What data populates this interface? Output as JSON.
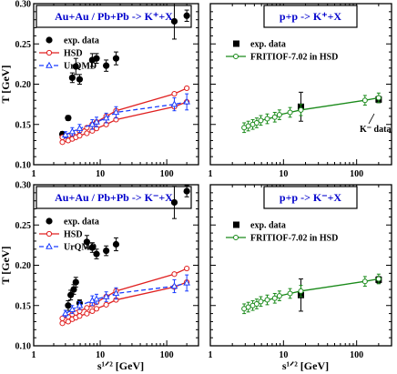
{
  "colors": {
    "exp": "#000000",
    "hsd": "#e02020",
    "urqmd": "#1a3cff",
    "fritiof": "#1a8a1a",
    "boxtext": "#0000cc"
  },
  "chart_data": [
    {
      "type": "scatter",
      "panel": "top-left",
      "boxtitle": "Au+Au / Pb+Pb  -> K⁺+X",
      "ylabel": "T [GeV]",
      "xlabel": "",
      "xscale": "log",
      "xlim": [
        1,
        300
      ],
      "ylim": [
        0.1,
        0.3
      ],
      "xticks": [
        "1",
        "10",
        "100"
      ],
      "yticks": [
        "0.10",
        "0.15",
        "0.20",
        "0.25",
        "0.30"
      ],
      "legend": [
        "exp. data",
        "HSD",
        "UrQMD"
      ],
      "series": [
        {
          "name": "exp. data",
          "kind": "points",
          "points": [
            [
              2.7,
              0.138
            ],
            [
              3.3,
              0.158
            ],
            [
              3.8,
              0.208
            ],
            [
              4.3,
              0.222
            ],
            [
              4.9,
              0.206
            ],
            [
              7.6,
              0.23
            ],
            [
              8.8,
              0.232
            ],
            [
              12.3,
              0.223
            ],
            [
              17.3,
              0.232
            ],
            [
              130,
              0.278
            ],
            [
              200,
              0.285
            ]
          ],
          "err": [
            0.003,
            0.003,
            0.006,
            0.01,
            0.006,
            0.008,
            0.006,
            0.007,
            0.008,
            0.022,
            0.007
          ]
        },
        {
          "name": "HSD",
          "kind": "band",
          "x": [
            2.7,
            3.3,
            3.8,
            4.3,
            4.9,
            6.3,
            7.6,
            8.8,
            12.3,
            17.3,
            130,
            200
          ],
          "upper": [
            0.134,
            0.136,
            0.138,
            0.14,
            0.142,
            0.146,
            0.15,
            0.153,
            0.16,
            0.167,
            0.188,
            0.195
          ],
          "lower": [
            0.128,
            0.13,
            0.132,
            0.134,
            0.136,
            0.139,
            0.142,
            0.145,
            0.15,
            0.156,
            0.172,
            0.178
          ]
        },
        {
          "name": "UrQMD",
          "kind": "line",
          "x": [
            3.0,
            3.8,
            4.9,
            7.6,
            8.8,
            12.3,
            17.3,
            130,
            200
          ],
          "y": [
            0.137,
            0.141,
            0.145,
            0.15,
            0.153,
            0.158,
            0.165,
            0.175,
            0.178
          ],
          "err": [
            0.004,
            0.005,
            0.005,
            0.006,
            0.006,
            0.006,
            0.007,
            0.008,
            0.01
          ]
        }
      ]
    },
    {
      "type": "scatter",
      "panel": "top-right",
      "boxtitle": "p+p -> K⁺+X",
      "ylabel": "",
      "xlabel": "",
      "xscale": "log",
      "xlim": [
        1,
        300
      ],
      "ylim": [
        0.1,
        0.3
      ],
      "xticks": [
        "1",
        "10",
        "100"
      ],
      "yticks": [],
      "legend": [
        "exp. data",
        "FRITIOF-7.02 in HSD"
      ],
      "annotation": "K⁻ data",
      "series": [
        {
          "name": "exp. data",
          "kind": "points",
          "points": [
            [
              17.3,
              0.172
            ],
            [
              200,
              0.181
            ]
          ],
          "err": [
            0.018,
            0.004
          ]
        },
        {
          "name": "FRITIOF-7.02 in HSD",
          "kind": "line",
          "x": [
            2.9,
            3.3,
            3.8,
            4.3,
            4.9,
            6.0,
            7.6,
            8.8,
            12.3,
            17.3,
            130,
            200
          ],
          "y": [
            0.146,
            0.148,
            0.15,
            0.152,
            0.155,
            0.157,
            0.159,
            0.162,
            0.165,
            0.168,
            0.18,
            0.183
          ],
          "err": [
            0.006,
            0.006,
            0.006,
            0.006,
            0.006,
            0.006,
            0.006,
            0.006,
            0.006,
            0.007,
            0.006,
            0.006
          ]
        }
      ]
    },
    {
      "type": "scatter",
      "panel": "bottom-left",
      "boxtitle": "Au+Au / Pb+Pb  -> K⁻+X",
      "ylabel": "T [GeV]",
      "xlabel": "s¹ᐟ² [GeV]",
      "xscale": "log",
      "xlim": [
        1,
        300
      ],
      "ylim": [
        0.1,
        0.3
      ],
      "xticks": [
        "1",
        "10",
        "100"
      ],
      "yticks": [
        "0.10",
        "0.15",
        "0.20",
        "0.25",
        "0.30"
      ],
      "legend": [
        "exp. data",
        "HSD",
        "UrQMD"
      ],
      "series": [
        {
          "name": "exp. data",
          "kind": "points",
          "points": [
            [
              3.3,
              0.15
            ],
            [
              3.6,
              0.163
            ],
            [
              4.0,
              0.17
            ],
            [
              4.3,
              0.179
            ],
            [
              4.9,
              0.153
            ],
            [
              6.3,
              0.229
            ],
            [
              7.6,
              0.222
            ],
            [
              8.8,
              0.214
            ],
            [
              12.3,
              0.218
            ],
            [
              17.3,
              0.226
            ],
            [
              130,
              0.278
            ],
            [
              200,
              0.292
            ]
          ],
          "err": [
            0.006,
            0.006,
            0.006,
            0.006,
            0.004,
            0.008,
            0.006,
            0.006,
            0.006,
            0.008,
            0.02,
            0.007
          ]
        },
        {
          "name": "HSD",
          "kind": "band",
          "x": [
            2.7,
            3.3,
            3.8,
            4.3,
            4.9,
            6.3,
            7.6,
            8.8,
            12.3,
            17.3,
            130,
            200
          ],
          "upper": [
            0.134,
            0.136,
            0.139,
            0.141,
            0.143,
            0.147,
            0.151,
            0.154,
            0.161,
            0.168,
            0.189,
            0.196
          ],
          "lower": [
            0.128,
            0.13,
            0.133,
            0.135,
            0.137,
            0.14,
            0.143,
            0.146,
            0.151,
            0.157,
            0.173,
            0.179
          ]
        },
        {
          "name": "UrQMD",
          "kind": "line",
          "x": [
            3.0,
            3.8,
            4.9,
            7.6,
            8.8,
            12.3,
            17.3,
            130,
            200
          ],
          "y": [
            0.14,
            0.145,
            0.15,
            0.156,
            0.158,
            0.161,
            0.165,
            0.174,
            0.178
          ],
          "err": [
            0.004,
            0.005,
            0.005,
            0.006,
            0.006,
            0.006,
            0.007,
            0.008,
            0.01
          ]
        }
      ]
    },
    {
      "type": "scatter",
      "panel": "bottom-right",
      "boxtitle": "p+p -> K⁻+X",
      "ylabel": "",
      "xlabel": "s¹ᐟ² [GeV]",
      "xscale": "log",
      "xlim": [
        1,
        300
      ],
      "ylim": [
        0.1,
        0.3
      ],
      "xticks": [
        "1",
        "10",
        "100"
      ],
      "yticks": [],
      "legend": [
        "exp. data",
        "FRITIOF-7.02 in HSD"
      ],
      "series": [
        {
          "name": "exp. data",
          "kind": "points",
          "points": [
            [
              17.3,
              0.163
            ],
            [
              200,
              0.182
            ]
          ],
          "err": [
            0.02,
            0.004
          ]
        },
        {
          "name": "FRITIOF-7.02 in HSD",
          "kind": "line",
          "x": [
            2.9,
            3.3,
            3.8,
            4.3,
            4.9,
            6.0,
            7.6,
            8.8,
            12.3,
            17.3,
            130,
            200
          ],
          "y": [
            0.146,
            0.148,
            0.15,
            0.152,
            0.155,
            0.157,
            0.159,
            0.162,
            0.165,
            0.168,
            0.18,
            0.183
          ],
          "err": [
            0.006,
            0.006,
            0.006,
            0.006,
            0.006,
            0.006,
            0.006,
            0.006,
            0.006,
            0.007,
            0.006,
            0.006
          ]
        }
      ]
    }
  ]
}
